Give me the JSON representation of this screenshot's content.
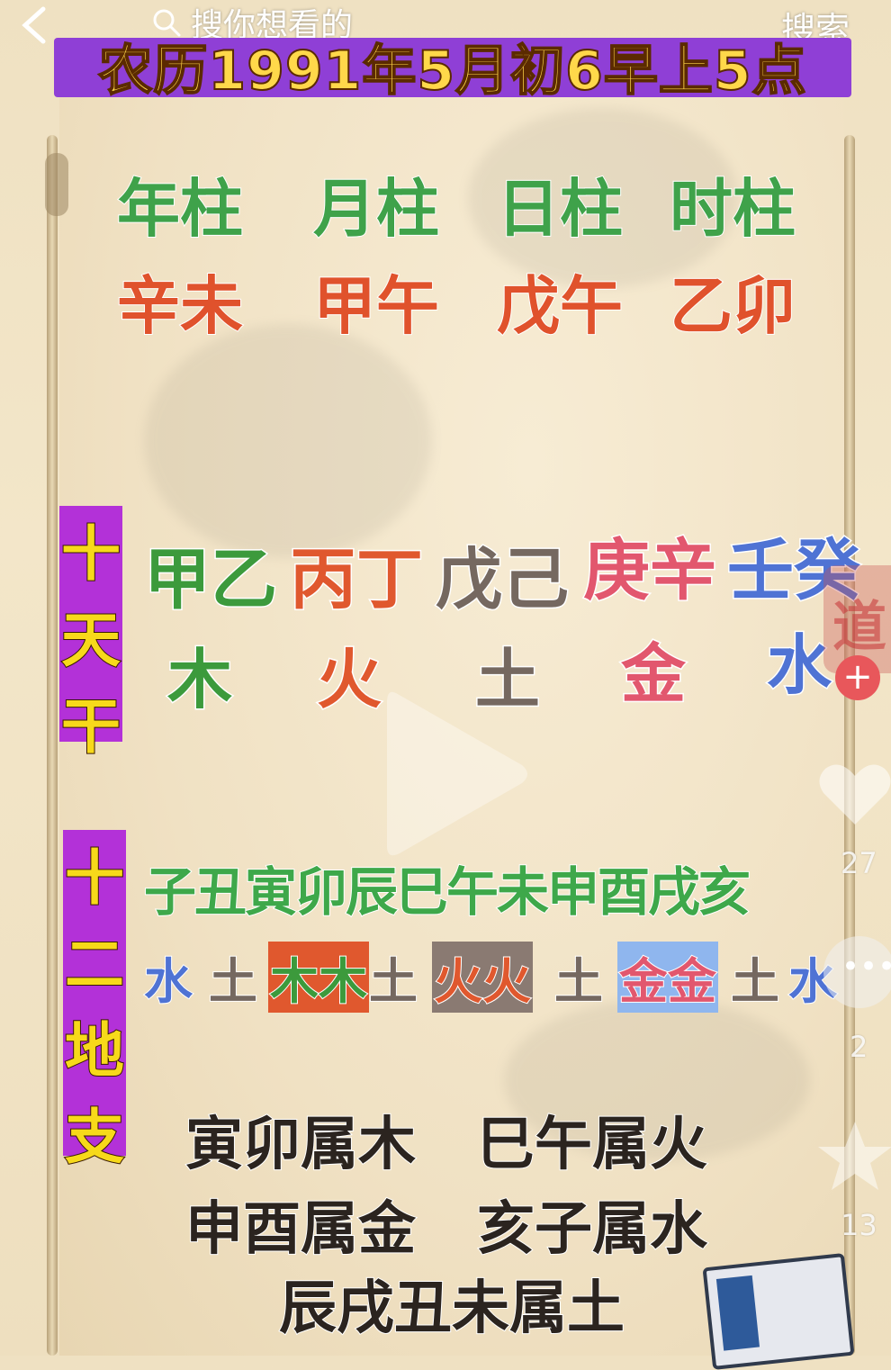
{
  "search": {
    "placeholder": "搜你想看的",
    "button": "搜索"
  },
  "title": "农历1991年5月初6早上5点",
  "pillars": {
    "headers": [
      "年柱",
      "月柱",
      "日柱",
      "时柱"
    ],
    "values": [
      "辛未",
      "甲午",
      "戊午",
      "乙卯"
    ]
  },
  "heavenly_stems": {
    "label": [
      "十",
      "天",
      "干"
    ],
    "groups": [
      "甲乙",
      "丙丁",
      "戊己",
      "庚辛",
      "壬癸"
    ],
    "elements": [
      "木",
      "火",
      "土",
      "金",
      "水"
    ]
  },
  "earthly_branches": {
    "label": [
      "十",
      "二",
      "地",
      "支"
    ],
    "branches": "子丑寅卯辰巳午未申酉戌亥",
    "elements": [
      "水",
      "土",
      "木",
      "木",
      "土",
      "火",
      "火",
      "土",
      "金",
      "金",
      "土",
      "水"
    ]
  },
  "rules": {
    "line1_a": "寅卯属木",
    "line1_b": "巳午属火",
    "line2_a": "申酉属金",
    "line2_b": "亥子属水",
    "line3": "辰戌丑未属土"
  },
  "side_counts": {
    "likes": "27",
    "comments": "2",
    "favorites": "13"
  },
  "seal_char": "道",
  "colors": {
    "title_band": "#8f3fd6",
    "title_text": "#ffd84a",
    "label_band": "#b331d8",
    "wood": "#3c9a3c",
    "fire": "#e0582e",
    "earth": "#756860",
    "metal": "#e2576e",
    "water": "#4f73d4"
  }
}
